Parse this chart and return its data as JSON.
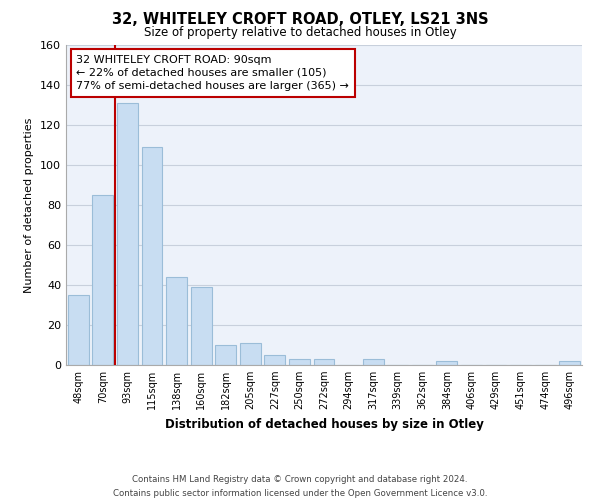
{
  "title_line1": "32, WHITELEY CROFT ROAD, OTLEY, LS21 3NS",
  "title_line2": "Size of property relative to detached houses in Otley",
  "xlabel": "Distribution of detached houses by size in Otley",
  "ylabel": "Number of detached properties",
  "bar_labels": [
    "48sqm",
    "70sqm",
    "93sqm",
    "115sqm",
    "138sqm",
    "160sqm",
    "182sqm",
    "205sqm",
    "227sqm",
    "250sqm",
    "272sqm",
    "294sqm",
    "317sqm",
    "339sqm",
    "362sqm",
    "384sqm",
    "406sqm",
    "429sqm",
    "451sqm",
    "474sqm",
    "496sqm"
  ],
  "bar_values": [
    35,
    85,
    131,
    109,
    44,
    39,
    10,
    11,
    5,
    3,
    3,
    0,
    3,
    0,
    0,
    2,
    0,
    0,
    0,
    0,
    2
  ],
  "bar_color": "#c8ddf2",
  "bar_edge_color": "#9bbdd8",
  "property_line_x": 1.5,
  "property_line_color": "#bb0000",
  "annotation_text": "32 WHITELEY CROFT ROAD: 90sqm\n← 22% of detached houses are smaller (105)\n77% of semi-detached houses are larger (365) →",
  "annotation_box_color": "#ffffff",
  "annotation_box_edge": "#bb0000",
  "ylim": [
    0,
    160
  ],
  "yticks": [
    0,
    20,
    40,
    60,
    80,
    100,
    120,
    140,
    160
  ],
  "footer_line1": "Contains HM Land Registry data © Crown copyright and database right 2024.",
  "footer_line2": "Contains public sector information licensed under the Open Government Licence v3.0.",
  "bg_color": "#ffffff",
  "plot_bg_color": "#edf2fa",
  "grid_color": "#c8d0dc"
}
